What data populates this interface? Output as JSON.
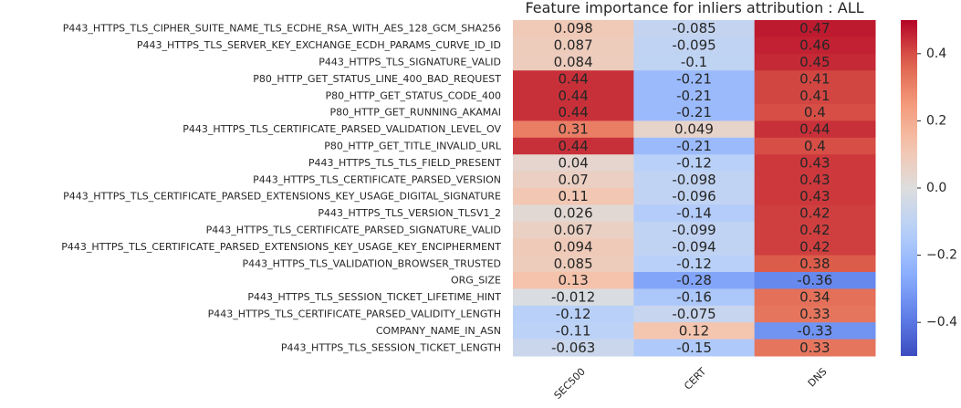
{
  "chart_data": {
    "type": "heatmap",
    "title": "Feature importance for inliers attribution : ALL",
    "columns": [
      "SEC500",
      "CERT",
      "DNS"
    ],
    "rows": [
      "P443_HTTPS_TLS_CIPHER_SUITE_NAME_TLS_ECDHE_RSA_WITH_AES_128_GCM_SHA256",
      "P443_HTTPS_TLS_SERVER_KEY_EXCHANGE_ECDH_PARAMS_CURVE_ID_ID",
      "P443_HTTPS_TLS_SIGNATURE_VALID",
      "P80_HTTP_GET_STATUS_LINE_400_BAD_REQUEST",
      "P80_HTTP_GET_STATUS_CODE_400",
      "P80_HTTP_GET_RUNNING_AKAMAI",
      "P443_HTTPS_TLS_CERTIFICATE_PARSED_VALIDATION_LEVEL_OV",
      "P80_HTTP_GET_TITLE_INVALID_URL",
      "P443_HTTPS_TLS_TLS_FIELD_PRESENT",
      "P443_HTTPS_TLS_CERTIFICATE_PARSED_VERSION",
      "P443_HTTPS_TLS_CERTIFICATE_PARSED_EXTENSIONS_KEY_USAGE_DIGITAL_SIGNATURE",
      "P443_HTTPS_TLS_VERSION_TLSV1_2",
      "P443_HTTPS_TLS_CERTIFICATE_PARSED_SIGNATURE_VALID",
      "P443_HTTPS_TLS_CERTIFICATE_PARSED_EXTENSIONS_KEY_USAGE_KEY_ENCIPHERMENT",
      "P443_HTTPS_TLS_VALIDATION_BROWSER_TRUSTED",
      "ORG_SIZE",
      "P443_HTTPS_TLS_SESSION_TICKET_LIFETIME_HINT",
      "P443_HTTPS_TLS_CERTIFICATE_PARSED_VALIDITY_LENGTH",
      "COMPANY_NAME_IN_ASN",
      "P443_HTTPS_TLS_SESSION_TICKET_LENGTH"
    ],
    "values": [
      [
        0.098,
        -0.085,
        0.47
      ],
      [
        0.087,
        -0.095,
        0.46
      ],
      [
        0.084,
        -0.1,
        0.45
      ],
      [
        0.44,
        -0.21,
        0.41
      ],
      [
        0.44,
        -0.21,
        0.41
      ],
      [
        0.44,
        -0.21,
        0.4
      ],
      [
        0.31,
        0.049,
        0.44
      ],
      [
        0.44,
        -0.21,
        0.4
      ],
      [
        0.04,
        -0.12,
        0.43
      ],
      [
        0.07,
        -0.098,
        0.43
      ],
      [
        0.11,
        -0.096,
        0.43
      ],
      [
        0.026,
        -0.14,
        0.42
      ],
      [
        0.067,
        -0.099,
        0.42
      ],
      [
        0.094,
        -0.094,
        0.42
      ],
      [
        0.085,
        -0.12,
        0.38
      ],
      [
        0.13,
        -0.28,
        -0.36
      ],
      [
        -0.012,
        -0.16,
        0.34
      ],
      [
        -0.12,
        -0.075,
        0.33
      ],
      [
        -0.11,
        0.12,
        -0.33
      ],
      [
        -0.063,
        -0.15,
        0.33
      ]
    ],
    "labels": [
      [
        "0.098",
        "-0.085",
        "0.47"
      ],
      [
        "0.087",
        "-0.095",
        "0.46"
      ],
      [
        "0.084",
        "-0.1",
        "0.45"
      ],
      [
        "0.44",
        "-0.21",
        "0.41"
      ],
      [
        "0.44",
        "-0.21",
        "0.41"
      ],
      [
        "0.44",
        "-0.21",
        "0.4"
      ],
      [
        "0.31",
        "0.049",
        "0.44"
      ],
      [
        "0.44",
        "-0.21",
        "0.4"
      ],
      [
        "0.04",
        "-0.12",
        "0.43"
      ],
      [
        "0.07",
        "-0.098",
        "0.43"
      ],
      [
        "0.11",
        "-0.096",
        "0.43"
      ],
      [
        "0.026",
        "-0.14",
        "0.42"
      ],
      [
        "0.067",
        "-0.099",
        "0.42"
      ],
      [
        "0.094",
        "-0.094",
        "0.42"
      ],
      [
        "0.085",
        "-0.12",
        "0.38"
      ],
      [
        "0.13",
        "-0.28",
        "-0.36"
      ],
      [
        "-0.012",
        "-0.16",
        "0.34"
      ],
      [
        "-0.12",
        "-0.075",
        "0.33"
      ],
      [
        "-0.11",
        "0.12",
        "-0.33"
      ],
      [
        "-0.063",
        "-0.15",
        "0.33"
      ]
    ],
    "colorbar": {
      "colormap": "coolwarm",
      "vmin": -0.5,
      "vmax": 0.5,
      "ticks": [
        0.4,
        0.2,
        0.0,
        -0.2,
        -0.4
      ],
      "tick_labels": [
        "0.4",
        "0.2",
        "0.0",
        "−0.2",
        "−0.4"
      ]
    },
    "grid": false
  }
}
